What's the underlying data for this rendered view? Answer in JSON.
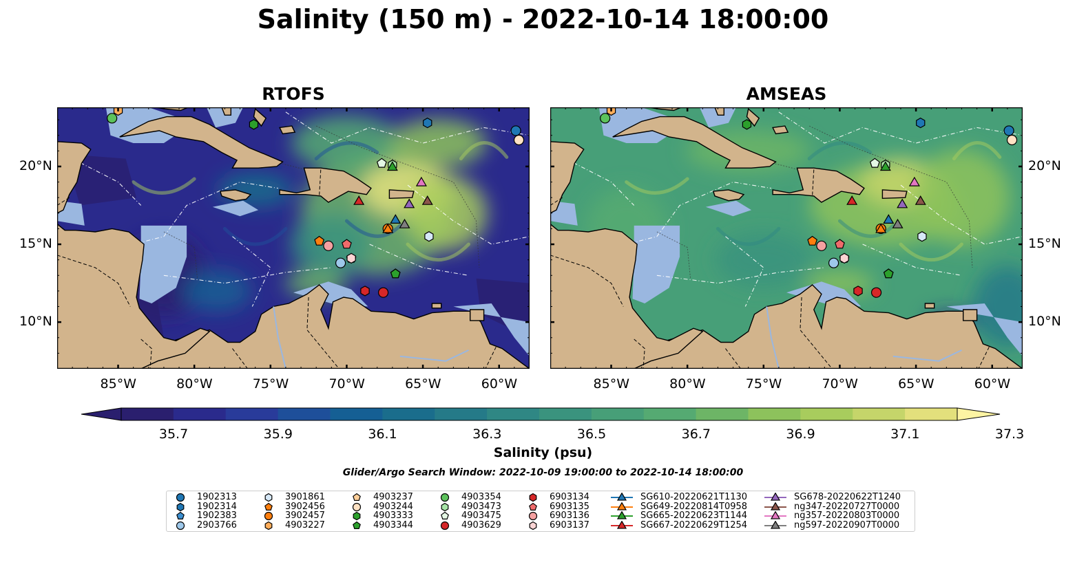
{
  "title": "Salinity (150 m) - 2022-10-14 18:00:00",
  "panels": [
    {
      "id": "rtofs",
      "title": "RTOFS"
    },
    {
      "id": "amseas",
      "title": "AMSEAS"
    }
  ],
  "map": {
    "lon_ticks": [
      "85°W",
      "80°W",
      "75°W",
      "70°W",
      "65°W",
      "60°W"
    ],
    "lat_ticks": [
      "20°N",
      "15°N",
      "10°N"
    ],
    "colors": {
      "land": "#d2b48c",
      "shallow_water": "#9ab7e0",
      "coast": "#000000"
    }
  },
  "colorbar": {
    "label": "Salinity (psu)",
    "ticks": [
      "35.7",
      "35.9",
      "36.1",
      "36.3",
      "36.5",
      "36.7",
      "36.9",
      "37.1",
      "37.3"
    ],
    "colors": [
      "#2a1f6e",
      "#2a2a8c",
      "#293b9a",
      "#1e4f9a",
      "#155f94",
      "#1a6d8c",
      "#257a88",
      "#2f8784",
      "#3a937e",
      "#479f78",
      "#55aa72",
      "#6db566",
      "#8dc25c",
      "#a8cc5d",
      "#c5d56a",
      "#e3e07c"
    ]
  },
  "search_window": "Glider/Argo Search Window: 2022-10-09 19:00:00 to 2022-10-14 18:00:00",
  "legend": [
    {
      "label": "1902313",
      "marker": "circle",
      "color": "#1f77b4"
    },
    {
      "label": "1902314",
      "marker": "hexagon",
      "color": "#1f77b4"
    },
    {
      "label": "1902383",
      "marker": "pentagon",
      "color": "#3c8fd0"
    },
    {
      "label": "2903766",
      "marker": "circle",
      "color": "#9ec8ea"
    },
    {
      "label": "3901861",
      "marker": "hexagon",
      "color": "#d6e8f7"
    },
    {
      "label": "3902456",
      "marker": "pentagon",
      "color": "#ff7f0e"
    },
    {
      "label": "3902457",
      "marker": "circle",
      "color": "#ff7f0e"
    },
    {
      "label": "4903227",
      "marker": "hexagon",
      "color": "#ffad5a"
    },
    {
      "label": "4903237",
      "marker": "pentagon",
      "color": "#ffcf9a"
    },
    {
      "label": "4903244",
      "marker": "circle",
      "color": "#ffe2c4"
    },
    {
      "label": "4903333",
      "marker": "hexagon",
      "color": "#2ca02c"
    },
    {
      "label": "4903344",
      "marker": "pentagon",
      "color": "#2ca02c"
    },
    {
      "label": "4903354",
      "marker": "circle",
      "color": "#5cc25c"
    },
    {
      "label": "4903473",
      "marker": "hexagon",
      "color": "#a6e3a6"
    },
    {
      "label": "4903475",
      "marker": "pentagon",
      "color": "#e4f7e4"
    },
    {
      "label": "4903629",
      "marker": "circle",
      "color": "#d62728"
    },
    {
      "label": "6903134",
      "marker": "hexagon",
      "color": "#d62728"
    },
    {
      "label": "6903135",
      "marker": "pentagon",
      "color": "#f06b6b"
    },
    {
      "label": "6903136",
      "marker": "circle",
      "color": "#f4a0a0"
    },
    {
      "label": "6903137",
      "marker": "hexagon",
      "color": "#fbd4d4"
    },
    {
      "label": "SG610-20220621T1130",
      "marker": "triangle",
      "color": "#1f77b4"
    },
    {
      "label": "SG649-20220814T0958",
      "marker": "triangle",
      "color": "#ff7f0e"
    },
    {
      "label": "SG665-20220623T1144",
      "marker": "triangle",
      "color": "#2ca02c"
    },
    {
      "label": "SG667-20220629T1254",
      "marker": "triangle",
      "color": "#d62728"
    },
    {
      "label": "SG678-20220622T1240",
      "marker": "triangle",
      "color": "#9467bd"
    },
    {
      "label": "ng347-20220727T0000",
      "marker": "triangle",
      "color": "#8c564b"
    },
    {
      "label": "ng357-20220803T0000",
      "marker": "triangle",
      "color": "#e377c2"
    },
    {
      "label": "ng597-20220907T0000",
      "marker": "triangle",
      "color": "#7f7f7f"
    }
  ],
  "observations": [
    {
      "label": "1902313",
      "lon": -58.9,
      "lat": 22.3
    },
    {
      "label": "1902314",
      "lon": -64.7,
      "lat": 22.8
    },
    {
      "label": "1902383",
      "lon": -66.8,
      "lat": 13.1
    },
    {
      "label": "2903766",
      "lon": -70.4,
      "lat": 13.8
    },
    {
      "label": "3901861",
      "lon": -64.6,
      "lat": 15.5
    },
    {
      "label": "3902456",
      "lon": -71.8,
      "lat": 15.2
    },
    {
      "label": "3902457",
      "lon": -67.3,
      "lat": 16.0
    },
    {
      "label": "4903227",
      "lon": -85.0,
      "lat": 23.6
    },
    {
      "label": "4903237",
      "lon": -69.7,
      "lat": 14.1
    },
    {
      "label": "4903244",
      "lon": -58.7,
      "lat": 21.7
    },
    {
      "label": "4903333",
      "lon": -76.1,
      "lat": 22.7
    },
    {
      "label": "4903344",
      "lon": -66.8,
      "lat": 13.1
    },
    {
      "label": "4903354",
      "lon": -85.4,
      "lat": 23.1
    },
    {
      "label": "4903473",
      "lon": -67.0,
      "lat": 20.1
    },
    {
      "label": "4903475",
      "lon": -67.7,
      "lat": 20.2
    },
    {
      "label": "4903629",
      "lon": -67.6,
      "lat": 11.9
    },
    {
      "label": "6903134",
      "lon": -68.8,
      "lat": 12.0
    },
    {
      "label": "6903135",
      "lon": -70.0,
      "lat": 15.0
    },
    {
      "label": "6903136",
      "lon": -71.2,
      "lat": 14.9
    },
    {
      "label": "6903137",
      "lon": -69.7,
      "lat": 14.1
    },
    {
      "label": "SG610-20220621T1130",
      "lon": -66.8,
      "lat": 16.6
    },
    {
      "label": "SG649-20220814T0958",
      "lon": -67.3,
      "lat": 16.0
    },
    {
      "label": "SG665-20220623T1144",
      "lon": -67.0,
      "lat": 20.0
    },
    {
      "label": "SG667-20220629T1254",
      "lon": -69.2,
      "lat": 17.8
    },
    {
      "label": "SG678-20220622T1240",
      "lon": -65.9,
      "lat": 17.6
    },
    {
      "label": "ng347-20220727T0000",
      "lon": -64.7,
      "lat": 17.8
    },
    {
      "label": "ng357-20220803T0000",
      "lon": -65.1,
      "lat": 19.0
    },
    {
      "label": "ng597-20220907T0000",
      "lon": -66.2,
      "lat": 16.3
    }
  ]
}
